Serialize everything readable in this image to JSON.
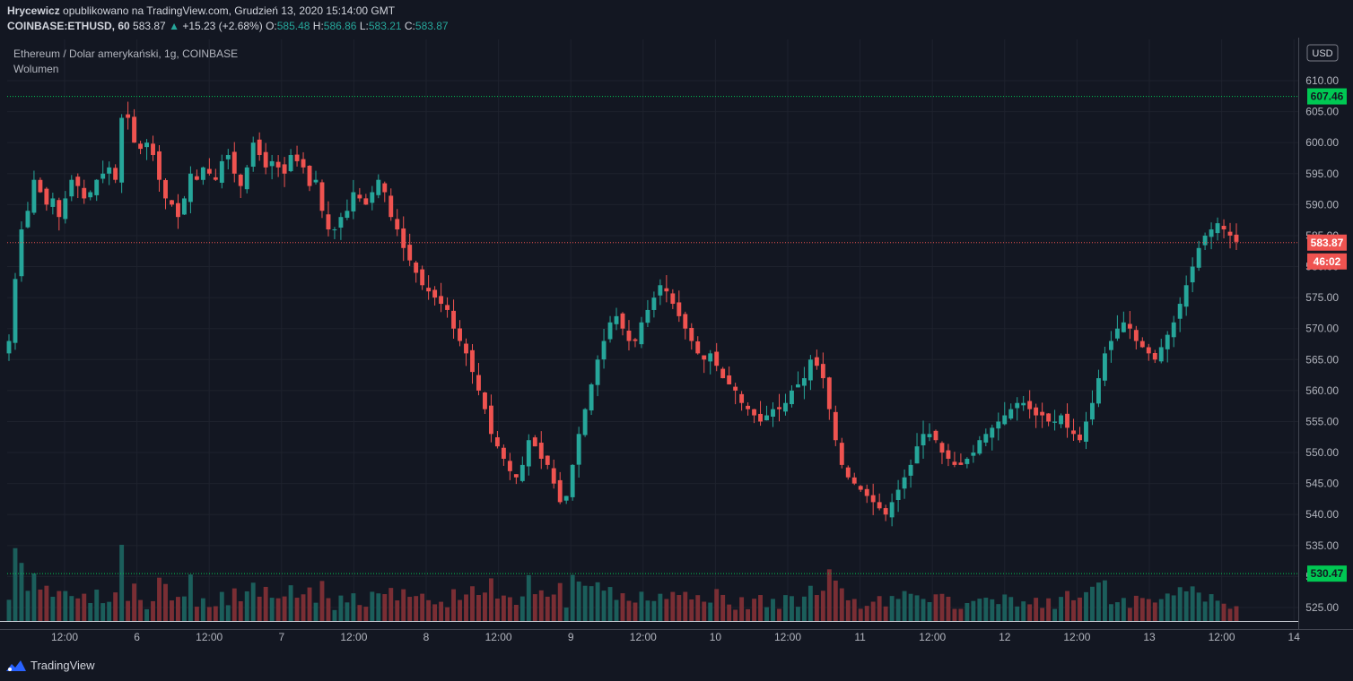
{
  "header": {
    "author": "Hrycewicz",
    "published_text": "opublikowano na TradingView.com, Grudzień 13, 2020 15:14:00 GMT",
    "symbol": "COINBASE:ETHUSD, 60",
    "last": "583.87",
    "change": "+15.23 (+2.68%)",
    "o_label": "O:",
    "o_value": "585.48",
    "h_label": "H:",
    "h_value": "586.86",
    "l_label": "L:",
    "l_value": "583.21",
    "c_label": "C:",
    "c_value": "583.87"
  },
  "legend": {
    "series_name": "Ethereum / Dolar amerykański, 1g, COINBASE",
    "volume_label": "Wolumen"
  },
  "currency_button": "USD",
  "footer": {
    "brand": "TradingView"
  },
  "colors": {
    "background": "#131722",
    "up": "#26a69a",
    "down": "#ef5350",
    "vol_up": "#1b5e5b",
    "vol_down": "#7a2e34",
    "alert_line": "#00c853",
    "price_line": "#ef5350"
  },
  "chart_data": {
    "type": "candlestick",
    "title": "Ethereum / Dolar amerykański, 1g, COINBASE",
    "interval": "1h",
    "y_axis": {
      "ticks": [
        "525.00",
        "530.00",
        "535.00",
        "540.00",
        "545.00",
        "550.00",
        "555.00",
        "560.00",
        "565.00",
        "570.00",
        "575.00",
        "580.00",
        "585.00",
        "590.00",
        "595.00",
        "600.00",
        "605.00",
        "610.00"
      ],
      "range": [
        522,
        612
      ]
    },
    "x_axis": {
      "ticks": [
        "12:00",
        "6",
        "12:00",
        "7",
        "12:00",
        "8",
        "12:00",
        "9",
        "12:00",
        "10",
        "12:00",
        "11",
        "12:00",
        "12",
        "12:00",
        "13",
        "12:00",
        "14"
      ]
    },
    "price_labels": [
      {
        "name": "alert-high",
        "value": 607.46,
        "text": "607.46",
        "color": "#00c853"
      },
      {
        "name": "last-price",
        "value": 583.87,
        "text": "583.87",
        "color": "#ef5350"
      },
      {
        "name": "countdown",
        "text": "46:02",
        "color": "#ef5350"
      },
      {
        "name": "alert-low",
        "value": 530.47,
        "text": "530.47",
        "color": "#00c853"
      }
    ],
    "close_series": [
      568,
      578,
      586,
      589,
      594,
      592,
      590,
      591,
      588,
      591,
      594,
      593,
      591,
      592,
      594,
      595,
      596,
      594,
      604,
      604,
      600,
      599,
      600,
      598,
      594,
      591,
      590,
      588,
      591,
      595,
      594,
      596,
      595,
      594,
      597,
      598,
      595,
      593,
      596,
      600,
      598,
      596,
      597,
      596,
      595,
      598,
      597,
      596,
      593,
      594,
      589,
      586,
      586,
      588,
      589,
      592,
      591,
      590,
      592,
      594,
      592,
      588,
      586,
      583,
      581,
      579,
      577,
      576,
      575,
      574,
      573,
      570,
      568,
      566,
      563,
      560,
      557,
      553,
      551,
      549,
      547,
      546,
      548,
      552,
      551,
      549,
      548,
      545,
      542,
      543,
      548,
      553,
      557,
      561,
      565,
      568,
      571,
      572,
      570,
      568,
      568,
      571,
      573,
      575,
      577,
      576,
      574,
      572,
      570,
      568,
      566,
      565,
      566,
      564,
      562,
      561,
      560,
      558,
      557,
      556,
      555,
      556,
      557,
      557,
      558,
      560,
      561,
      562,
      565,
      564,
      562,
      557,
      552,
      548,
      546,
      545,
      544,
      543,
      542,
      541,
      540,
      542,
      544,
      546,
      548,
      551,
      553,
      553,
      552,
      550,
      549,
      548,
      548,
      549,
      550,
      552,
      553,
      554,
      555,
      556,
      557,
      558,
      558,
      557,
      556,
      556,
      555,
      555,
      556,
      554,
      553,
      552,
      555,
      558,
      562,
      566,
      568,
      570,
      571,
      570,
      568,
      567,
      566,
      565,
      567,
      569,
      571,
      574,
      577,
      580,
      583,
      585,
      586,
      587,
      586,
      585,
      584
    ]
  }
}
